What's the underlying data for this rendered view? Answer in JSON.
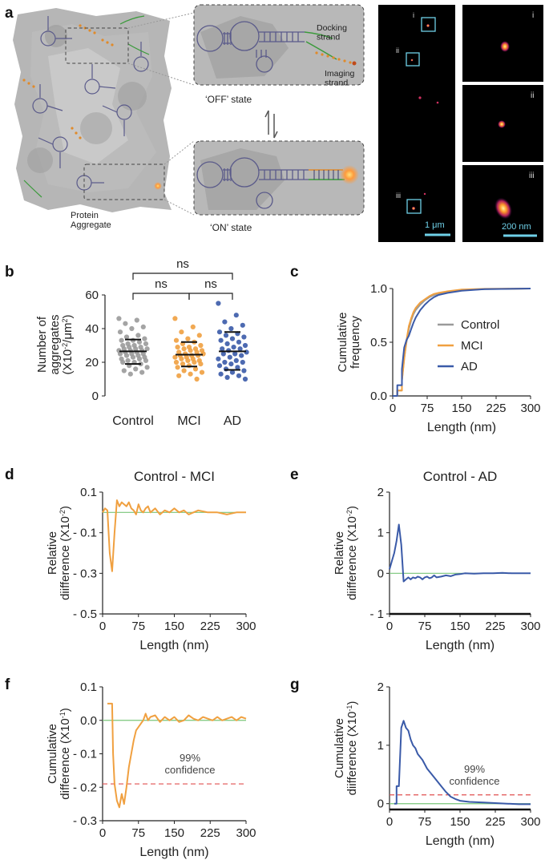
{
  "panel_labels": {
    "a": "a",
    "b": "b",
    "c": "c",
    "d": "d",
    "e": "e",
    "f": "f",
    "g": "g"
  },
  "panel_a": {
    "docking": "Docking\nstrand",
    "imaging": "Imaging\nstrand",
    "off_state": "‘OFF’ state",
    "on_state": "‘ON’ state",
    "protein": "Protein\nAggregate",
    "roi_labels": [
      "i",
      "ii",
      "iii"
    ],
    "scale_big": "1 μm",
    "scale_small": "200 nm",
    "colors": {
      "aggregate": "#a9a9a9",
      "strand": "#5a5a8a",
      "docking": "#3a9a3a",
      "imaging": "#e08a2a",
      "dye": "#ff9a3c",
      "roi": "#6fd0e8"
    }
  },
  "chart_data": [
    {
      "id": "b",
      "type": "scatter",
      "categories": [
        "Control",
        "MCI",
        "AD"
      ],
      "ylabel": "Number of\naggregates\n(X10-2/μm2)",
      "ylim": [
        0,
        60
      ],
      "yticks": [
        0,
        20,
        40,
        60
      ],
      "significance": [
        {
          "pair": [
            "Control",
            "MCI"
          ],
          "label": "ns"
        },
        {
          "pair": [
            "MCI",
            "AD"
          ],
          "label": "ns"
        },
        {
          "pair": [
            "Control",
            "AD"
          ],
          "label": "ns"
        }
      ],
      "summary": [
        {
          "name": "Control",
          "mean": 26.5,
          "sd_low": 19,
          "sd_high": 33.5,
          "color": "#9a9a9a"
        },
        {
          "name": "MCI",
          "mean": 24.5,
          "sd_low": 17.5,
          "sd_high": 32,
          "color": "#f0a040"
        },
        {
          "name": "AD",
          "mean": 26.5,
          "sd_low": 15.5,
          "sd_high": 38,
          "color": "#3a5aa8"
        }
      ],
      "series": [
        {
          "name": "Control",
          "color": "#9a9a9a",
          "values": [
            46,
            45,
            43,
            41,
            40,
            38,
            36,
            35,
            34,
            33,
            33,
            32,
            31,
            31,
            30,
            30,
            29,
            29,
            28,
            28,
            28,
            27,
            27,
            27,
            26,
            26,
            25,
            25,
            25,
            24,
            24,
            23,
            23,
            22,
            22,
            21,
            21,
            20,
            20,
            19,
            18,
            17,
            16,
            15,
            14,
            13
          ]
        },
        {
          "name": "MCI",
          "color": "#f0a040",
          "values": [
            46,
            41,
            38,
            36,
            34,
            33,
            32,
            31,
            30,
            29,
            29,
            28,
            28,
            27,
            27,
            26,
            26,
            25,
            25,
            24,
            24,
            24,
            23,
            23,
            22,
            22,
            21,
            21,
            20,
            20,
            19,
            19,
            18,
            17,
            16,
            15,
            14,
            13,
            12,
            10
          ]
        },
        {
          "name": "AD",
          "color": "#3a5aa8",
          "values": [
            55,
            48,
            44,
            42,
            40,
            38,
            37,
            36,
            35,
            34,
            33,
            32,
            31,
            30,
            29,
            28,
            28,
            27,
            26,
            25,
            25,
            24,
            23,
            22,
            21,
            20,
            20,
            19,
            18,
            17,
            16,
            15,
            14,
            13,
            12,
            11,
            10
          ]
        }
      ]
    },
    {
      "id": "c",
      "type": "line",
      "xlabel": "Length (nm)",
      "ylabel": "Cumulative\nfrequency",
      "xlim": [
        0,
        300
      ],
      "ylim": [
        0,
        1.0
      ],
      "xticks": [
        0,
        75,
        150,
        225,
        300
      ],
      "yticks": [
        0.0,
        0.5,
        1.0
      ],
      "legend": [
        "Control",
        "MCI",
        "AD"
      ],
      "series": [
        {
          "name": "Control",
          "color": "#9a9a9a",
          "x": [
            0,
            10,
            10,
            20,
            20,
            25,
            30,
            35,
            40,
            45,
            50,
            60,
            70,
            80,
            90,
            100,
            120,
            150,
            200,
            300
          ],
          "y": [
            0,
            0,
            0.05,
            0.05,
            0.15,
            0.35,
            0.5,
            0.62,
            0.7,
            0.76,
            0.8,
            0.85,
            0.89,
            0.92,
            0.94,
            0.95,
            0.97,
            0.985,
            0.995,
            1.0
          ]
        },
        {
          "name": "MCI",
          "color": "#f0a040",
          "x": [
            0,
            10,
            10,
            20,
            20,
            25,
            30,
            35,
            40,
            45,
            50,
            60,
            70,
            80,
            90,
            100,
            120,
            150,
            200,
            300
          ],
          "y": [
            0,
            0,
            0.05,
            0.05,
            0.14,
            0.34,
            0.52,
            0.65,
            0.72,
            0.78,
            0.82,
            0.87,
            0.9,
            0.93,
            0.95,
            0.96,
            0.975,
            0.99,
            0.997,
            1.0
          ]
        },
        {
          "name": "AD",
          "color": "#3a5aa8",
          "x": [
            0,
            10,
            10,
            20,
            20,
            25,
            30,
            35,
            40,
            45,
            50,
            60,
            70,
            80,
            90,
            100,
            120,
            150,
            200,
            300
          ],
          "y": [
            0,
            0,
            0.1,
            0.1,
            0.25,
            0.45,
            0.52,
            0.56,
            0.62,
            0.68,
            0.73,
            0.8,
            0.85,
            0.89,
            0.92,
            0.94,
            0.96,
            0.98,
            0.995,
            1.0
          ]
        }
      ]
    },
    {
      "id": "d",
      "type": "line",
      "title": "Control - MCI",
      "xlabel": "Length (nm)",
      "ylabel": "Relative\ndiifference  (X10-2)",
      "xlim": [
        0,
        300
      ],
      "ylim": [
        -0.5,
        0.1
      ],
      "xticks": [
        0,
        75,
        150,
        225,
        300
      ],
      "yticks": [
        0.1,
        -0.1,
        -0.3,
        -0.5
      ],
      "ytick_labels": [
        "0.1",
        "- 0.1",
        "- 0.3",
        "- 0.5"
      ],
      "zero_line_color": "#7ac67a",
      "series": [
        {
          "name": "Control - MCI",
          "color": "#f0a040",
          "x": [
            0,
            5,
            10,
            15,
            20,
            25,
            30,
            35,
            40,
            45,
            50,
            55,
            60,
            65,
            70,
            75,
            80,
            85,
            90,
            95,
            100,
            110,
            120,
            130,
            140,
            150,
            160,
            170,
            180,
            190,
            200,
            220,
            240,
            260,
            280,
            300
          ],
          "y": [
            0.0,
            0.02,
            0.01,
            -0.2,
            -0.29,
            -0.1,
            0.06,
            0.03,
            0.05,
            0.04,
            0.03,
            0.05,
            0.02,
            0.01,
            -0.01,
            0.04,
            0.01,
            0.0,
            0.02,
            0.03,
            0.0,
            0.02,
            -0.01,
            0.01,
            0.0,
            0.02,
            0.0,
            0.01,
            -0.01,
            0.0,
            0.01,
            0.0,
            0.0,
            -0.01,
            0.0,
            0.0
          ]
        }
      ]
    },
    {
      "id": "e",
      "type": "line",
      "title": "Control - AD",
      "xlabel": "Length (nm)",
      "ylabel": "Relative\ndiifference  (X10-2)",
      "xlim": [
        0,
        300
      ],
      "ylim": [
        -1,
        2
      ],
      "xticks": [
        0,
        75,
        150,
        225,
        300
      ],
      "yticks": [
        2,
        1,
        0,
        -1
      ],
      "ytick_labels": [
        "2",
        "1",
        "0",
        "- 1"
      ],
      "zero_line_color": "#7ac67a",
      "series": [
        {
          "name": "Control - AD",
          "color": "#3a5aa8",
          "x": [
            0,
            5,
            10,
            15,
            20,
            25,
            30,
            35,
            40,
            45,
            50,
            55,
            60,
            65,
            70,
            75,
            80,
            85,
            90,
            95,
            100,
            110,
            120,
            130,
            140,
            150,
            160,
            180,
            200,
            220,
            240,
            260,
            280,
            300
          ],
          "y": [
            0.1,
            0.3,
            0.5,
            0.8,
            1.2,
            0.7,
            -0.2,
            -0.15,
            -0.1,
            -0.15,
            -0.1,
            -0.12,
            -0.08,
            -0.1,
            -0.15,
            -0.1,
            -0.08,
            -0.12,
            -0.1,
            -0.05,
            -0.1,
            -0.08,
            -0.05,
            -0.07,
            -0.03,
            -0.02,
            0.0,
            -0.01,
            0.0,
            0.0,
            0.01,
            0.0,
            0.0,
            0.0
          ]
        }
      ]
    },
    {
      "id": "f",
      "type": "line",
      "xlabel": "Length (nm)",
      "ylabel": "Cumulative\ndifference  (X10-1)",
      "xlim": [
        0,
        300
      ],
      "ylim": [
        -0.3,
        0.1
      ],
      "xticks": [
        0,
        75,
        150,
        225,
        300
      ],
      "yticks": [
        0.1,
        0.0,
        -0.1,
        -0.2,
        -0.3
      ],
      "ytick_labels": [
        "0.1",
        "0.0",
        "- 0.1",
        "- 0.2",
        "- 0.3"
      ],
      "zero_line_color": "#7ac67a",
      "threshold": {
        "y": -0.19,
        "label": "99%\nconfidence",
        "color": "#e05050"
      },
      "series": [
        {
          "name": "Control - MCI",
          "color": "#f0a040",
          "x": [
            10,
            12,
            20,
            22,
            25,
            30,
            35,
            40,
            45,
            50,
            55,
            60,
            65,
            70,
            75,
            80,
            85,
            90,
            95,
            100,
            110,
            120,
            130,
            140,
            150,
            160,
            170,
            180,
            190,
            200,
            210,
            220,
            230,
            240,
            250,
            260,
            270,
            280,
            290,
            300
          ],
          "y": [
            0.05,
            0.05,
            0.05,
            -0.1,
            -0.19,
            -0.24,
            -0.26,
            -0.22,
            -0.25,
            -0.2,
            -0.14,
            -0.1,
            -0.06,
            -0.03,
            -0.02,
            -0.01,
            0.0,
            0.02,
            0.0,
            0.01,
            0.015,
            -0.005,
            0.01,
            0.0,
            0.01,
            -0.005,
            0.0,
            0.015,
            0.005,
            0.0,
            0.01,
            0.005,
            0.0,
            0.01,
            0.0,
            0.005,
            0.01,
            0.0,
            0.01,
            0.005
          ]
        }
      ]
    },
    {
      "id": "g",
      "type": "line",
      "xlabel": "Length (nm)",
      "ylabel": "Cumulative\ndiifference  (X10-1)",
      "xlim": [
        0,
        300
      ],
      "ylim": [
        -0.1,
        2
      ],
      "xticks": [
        0,
        75,
        150,
        225,
        300
      ],
      "yticks": [
        2,
        1,
        0
      ],
      "ytick_labels": [
        "2",
        "1",
        "0"
      ],
      "zero_line_color": "#7ac67a",
      "threshold": {
        "y": 0.15,
        "label": "99%\nconfidence",
        "color": "#e05050"
      },
      "series": [
        {
          "name": "Control - AD",
          "color": "#3a5aa8",
          "x": [
            10,
            15,
            15,
            20,
            25,
            30,
            35,
            40,
            45,
            50,
            55,
            60,
            70,
            80,
            90,
            100,
            110,
            120,
            130,
            140,
            150,
            170,
            200,
            225,
            250,
            275,
            300
          ],
          "y": [
            0.0,
            0.0,
            0.3,
            0.3,
            1.3,
            1.42,
            1.3,
            1.25,
            1.1,
            1.0,
            0.95,
            0.85,
            0.75,
            0.6,
            0.5,
            0.4,
            0.3,
            0.2,
            0.12,
            0.08,
            0.05,
            0.03,
            0.02,
            0.01,
            0.0,
            -0.01,
            -0.01
          ]
        }
      ]
    }
  ]
}
